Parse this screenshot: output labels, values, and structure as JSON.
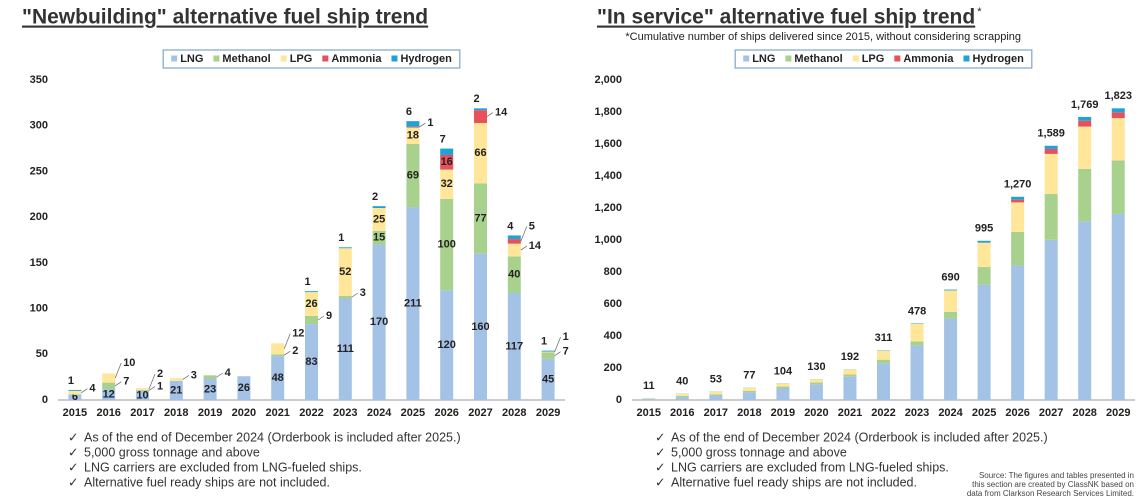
{
  "chart_data": [
    {
      "type": "bar",
      "stacked": true,
      "segment_labels": true,
      "title": "\"Newbuilding\" alternative fuel ship trend",
      "categories": [
        "2015",
        "2016",
        "2017",
        "2018",
        "2019",
        "2020",
        "2021",
        "2022",
        "2023",
        "2024",
        "2025",
        "2026",
        "2027",
        "2028",
        "2029"
      ],
      "series": [
        {
          "name": "LNG",
          "color": "#a4c2e6",
          "label_color": "#1f3864",
          "values": [
            6,
            12,
            10,
            21,
            23,
            26,
            48,
            83,
            111,
            170,
            211,
            120,
            160,
            117,
            45
          ]
        },
        {
          "name": "Methanol",
          "color": "#a9d18e",
          "label_color": "#375623",
          "values": [
            null,
            7,
            1,
            null,
            4,
            null,
            2,
            9,
            3,
            15,
            69,
            100,
            77,
            40,
            7
          ]
        },
        {
          "name": "LPG",
          "color": "#ffe699",
          "label_color": "#7f6000",
          "values": [
            4,
            10,
            2,
            3,
            null,
            null,
            12,
            26,
            52,
            25,
            18,
            32,
            66,
            14,
            1
          ]
        },
        {
          "name": "Ammonia",
          "color": "#e8505b",
          "label_color": "#a00000",
          "values": [
            null,
            null,
            null,
            null,
            null,
            null,
            null,
            null,
            null,
            null,
            1,
            16,
            14,
            5,
            null
          ]
        },
        {
          "name": "Hydrogen",
          "color": "#1fa3d6",
          "label_color": "#1fa3d6",
          "values": [
            1,
            null,
            null,
            null,
            null,
            null,
            null,
            1,
            1,
            2,
            6,
            7,
            2,
            4,
            1
          ]
        }
      ],
      "ylim": [
        0,
        350
      ],
      "yticks": [
        0,
        50,
        100,
        150,
        200,
        250,
        300,
        350
      ],
      "grid": false,
      "legend": "top",
      "notes": [
        "As of the end of December 2024 (Orderbook is included after 2025.)",
        "5,000 gross tonnage and above",
        "LNG carriers are excluded from LNG-fueled ships.",
        "Alternative fuel ready ships are not included."
      ]
    },
    {
      "type": "bar",
      "stacked": true,
      "segment_labels": false,
      "title": "\"In service\" alternative fuel ship trend",
      "title_mark": "*",
      "subtitle": "*Cumulative number of ships delivered since 2015, without considering scrapping",
      "categories": [
        "2015",
        "2016",
        "2017",
        "2018",
        "2019",
        "2020",
        "2021",
        "2022",
        "2023",
        "2024",
        "2025",
        "2026",
        "2027",
        "2028",
        "2029"
      ],
      "series": [
        {
          "name": "LNG",
          "color": "#a4c2e6",
          "values": [
            6,
            18,
            28,
            49,
            72,
            98,
            146,
            229,
            340,
            510,
            721,
            841,
            1001,
            1118,
            1163
          ]
        },
        {
          "name": "Methanol",
          "color": "#a9d18e",
          "values": [
            0,
            7,
            8,
            8,
            12,
            12,
            14,
            23,
            26,
            41,
            110,
            210,
            287,
            327,
            334
          ]
        },
        {
          "name": "LPG",
          "color": "#ffe699",
          "values": [
            4,
            14,
            16,
            19,
            19,
            19,
            31,
            57,
            109,
            134,
            152,
            184,
            250,
            264,
            265
          ]
        },
        {
          "name": "Ammonia",
          "color": "#e8505b",
          "values": [
            0,
            0,
            0,
            0,
            0,
            0,
            0,
            0,
            0,
            0,
            1,
            17,
            31,
            36,
            36
          ]
        },
        {
          "name": "Hydrogen",
          "color": "#1fa3d6",
          "values": [
            1,
            1,
            1,
            1,
            1,
            1,
            1,
            2,
            3,
            5,
            11,
            18,
            20,
            24,
            25
          ]
        }
      ],
      "totals": [
        11,
        40,
        53,
        77,
        104,
        130,
        192,
        311,
        478,
        690,
        995,
        1270,
        1589,
        1769,
        1823
      ],
      "total_labels": [
        "11",
        "40",
        "53",
        "77",
        "104",
        "130",
        "192",
        "311",
        "478",
        "690",
        "995",
        "1,270",
        "1,589",
        "1,769",
        "1,823"
      ],
      "ylim": [
        0,
        2000
      ],
      "yticks": [
        0,
        200,
        400,
        600,
        800,
        {
          "value": 1000,
          "label": "1,000"
        },
        {
          "value": 1200,
          "label": "1,200"
        },
        {
          "value": 1400,
          "label": "1,400"
        },
        {
          "value": 1600,
          "label": "1,600"
        },
        {
          "value": 1800,
          "label": "1,800"
        },
        {
          "value": 2000,
          "label": "2,000"
        }
      ],
      "grid": false,
      "legend": "top",
      "notes": [
        "As of the end of December 2024 (Orderbook is included after 2025.)",
        "5,000 gross tonnage and above",
        "LNG carriers are excluded from LNG-fueled ships.",
        "Alternative fuel ready ships are not included."
      ]
    }
  ],
  "source": [
    "Source: The figures and tables presented in",
    "this section are created by ClassNK based on",
    "data from Clarkson Research Services Limited."
  ]
}
